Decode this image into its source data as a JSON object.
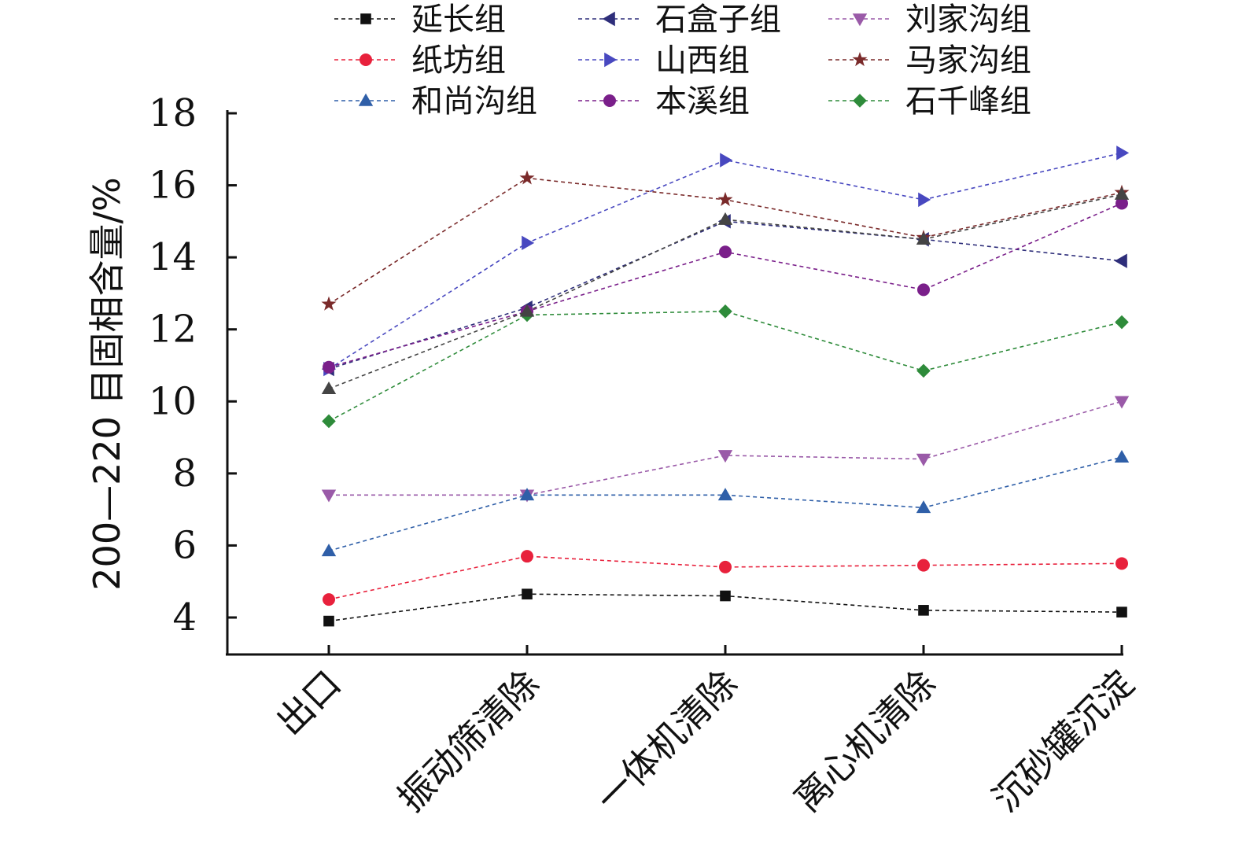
{
  "chart_data": {
    "type": "line",
    "title": "",
    "xlabel": "",
    "ylabel": "200—220 目固相含量/%",
    "ylim": [
      3,
      18
    ],
    "yticks": [
      4,
      6,
      8,
      10,
      12,
      14,
      16,
      18
    ],
    "categories": [
      "出口",
      "振动筛清除",
      "一体机清除",
      "离心机清除",
      "沉砂罐沉淀"
    ],
    "legend_position": "top",
    "series": [
      {
        "name": "延长组",
        "marker": "square",
        "color": "#111111",
        "values": [
          3.9,
          4.65,
          4.6,
          4.2,
          4.15
        ]
      },
      {
        "name": "石盒子组",
        "marker": "triangle-left",
        "color": "#2e2e7a",
        "values": [
          10.9,
          12.6,
          15.0,
          14.5,
          13.9
        ]
      },
      {
        "name": "刘家沟组",
        "marker": "triangle-down",
        "color": "#9a5aa8",
        "values": [
          7.4,
          7.4,
          8.5,
          8.4,
          10.0
        ]
      },
      {
        "name": "纸坊组",
        "marker": "circle",
        "color": "#e8213c",
        "values": [
          4.5,
          5.7,
          5.4,
          5.45,
          5.5
        ]
      },
      {
        "name": "山西组",
        "marker": "triangle-right",
        "color": "#4848c0",
        "values": [
          10.9,
          14.4,
          16.7,
          15.6,
          16.9
        ]
      },
      {
        "name": "马家沟组",
        "marker": "star",
        "color": "#7a2a2a",
        "values": [
          12.7,
          16.2,
          15.6,
          14.55,
          15.8
        ]
      },
      {
        "name": "和尚沟组",
        "marker": "triangle-up",
        "color": "#2f5fa8",
        "values": [
          5.85,
          7.4,
          7.4,
          7.05,
          8.45
        ]
      },
      {
        "name": "本溪组",
        "marker": "circle",
        "color": "#7a1f8a",
        "values": [
          10.95,
          12.5,
          14.15,
          13.1,
          15.5
        ]
      },
      {
        "name": "石千峰组",
        "marker": "diamond",
        "color": "#2e8b3a",
        "values": [
          9.45,
          12.4,
          12.5,
          10.85,
          12.2
        ]
      },
      {
        "name": "",
        "marker": "triangle-up",
        "color": "#444444",
        "values": [
          10.35,
          12.5,
          15.05,
          14.5,
          15.75
        ]
      }
    ]
  }
}
